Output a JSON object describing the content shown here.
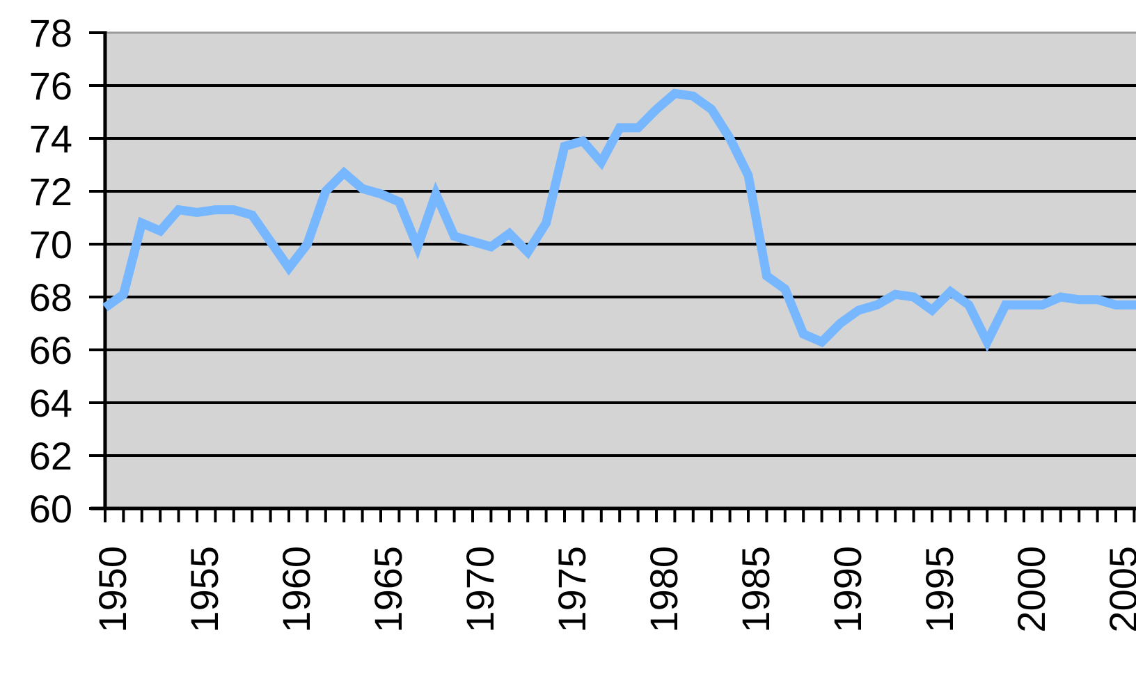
{
  "chart_data": {
    "type": "line",
    "title": "",
    "xlabel": "",
    "ylabel": "",
    "ylim": [
      60,
      78
    ],
    "xlim": [
      1950,
      2007
    ],
    "y_ticks": [
      "60",
      "62",
      "64",
      "66",
      "68",
      "70",
      "72",
      "74",
      "76",
      "78"
    ],
    "x_ticks": [
      "1950",
      "1955",
      "1960",
      "1965",
      "1970",
      "1975",
      "1980",
      "1985",
      "1990",
      "1995",
      "2000",
      "2005"
    ],
    "grid": true,
    "legend": "none",
    "colors": {
      "plot_background": "#d4d4d4",
      "line": "#76b7ff",
      "grid": "#000000",
      "axis": "#000000"
    },
    "series": [
      {
        "x": [
          1950,
          1951,
          1952,
          1953,
          1954,
          1955,
          1956,
          1957,
          1958,
          1959,
          1960,
          1961,
          1962,
          1963,
          1964,
          1965,
          1966,
          1967,
          1968,
          1969,
          1970,
          1971,
          1972,
          1973,
          1974,
          1975,
          1976,
          1977,
          1978,
          1979,
          1980,
          1981,
          1982,
          1983,
          1984,
          1985,
          1986,
          1987,
          1988,
          1989,
          1990,
          1991,
          1992,
          1993,
          1994,
          1995,
          1996,
          1997,
          1998,
          1999,
          2000,
          2001,
          2002,
          2003,
          2004,
          2005,
          2006,
          2007
        ],
        "values": [
          67.6,
          68.1,
          70.8,
          70.5,
          71.3,
          71.2,
          71.3,
          71.3,
          71.1,
          70.1,
          69.1,
          70.0,
          72.0,
          72.7,
          72.1,
          71.9,
          71.6,
          69.9,
          71.9,
          70.3,
          70.1,
          69.9,
          70.4,
          69.7,
          70.8,
          73.7,
          73.9,
          73.1,
          74.4,
          74.4,
          75.1,
          75.7,
          75.6,
          75.1,
          74.0,
          72.6,
          68.8,
          68.3,
          66.6,
          66.3,
          67.0,
          67.5,
          67.7,
          68.1,
          68.0,
          67.5,
          68.2,
          67.7,
          66.3,
          67.7,
          67.7,
          67.7,
          68.0,
          67.9,
          67.9,
          67.7,
          67.7,
          67.7
        ]
      }
    ]
  }
}
